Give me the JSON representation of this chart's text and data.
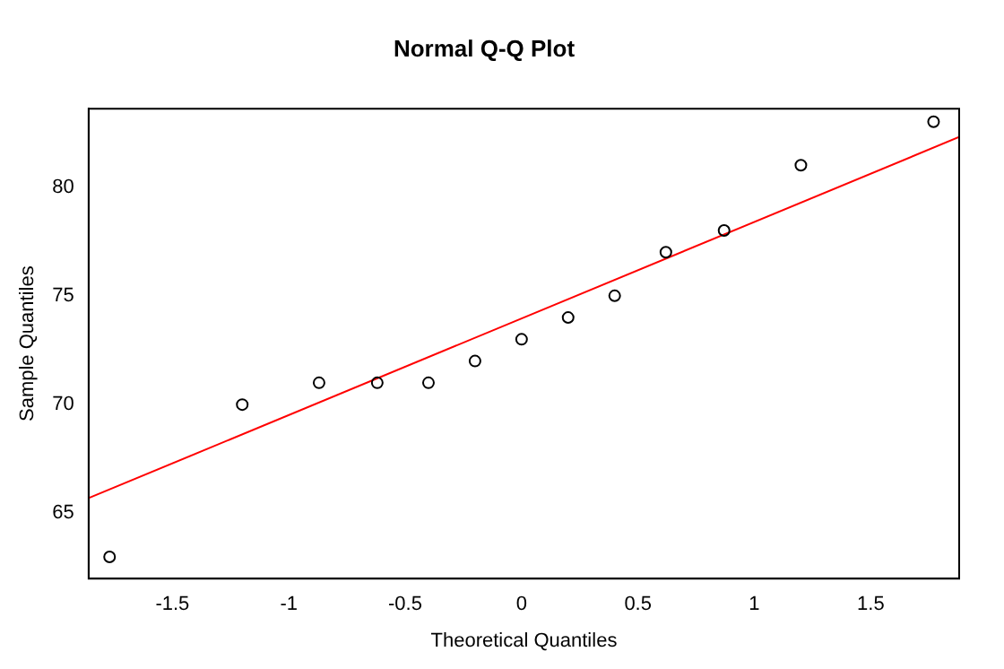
{
  "chart_data": {
    "type": "scatter",
    "title": "Normal Q-Q Plot",
    "xlabel": "Theoretical Quantiles",
    "ylabel": "Sample Quantiles",
    "series": [
      {
        "marker": "circle",
        "color": "#000000",
        "x": [
          -1.77,
          -1.2,
          -0.87,
          -0.62,
          -0.4,
          -0.2,
          0,
          0.2,
          0.4,
          0.62,
          0.87,
          1.2,
          1.77
        ],
        "values": [
          63,
          70,
          71,
          71,
          71,
          72,
          73,
          74,
          75,
          77,
          78,
          81,
          83
        ]
      },
      {
        "type": "line",
        "color": "#ff0000",
        "x": [
          -1.86,
          1.88
        ],
        "values": [
          65.7,
          82.3
        ]
      }
    ],
    "xlim": [
      -1.86,
      1.88
    ],
    "ylim": [
      62,
      83.6
    ],
    "xticks": [
      -1.5,
      -1,
      -0.5,
      0,
      0.5,
      1,
      1.5
    ],
    "yticks": [
      65,
      70,
      75,
      80
    ],
    "grid": false,
    "legend": false
  }
}
